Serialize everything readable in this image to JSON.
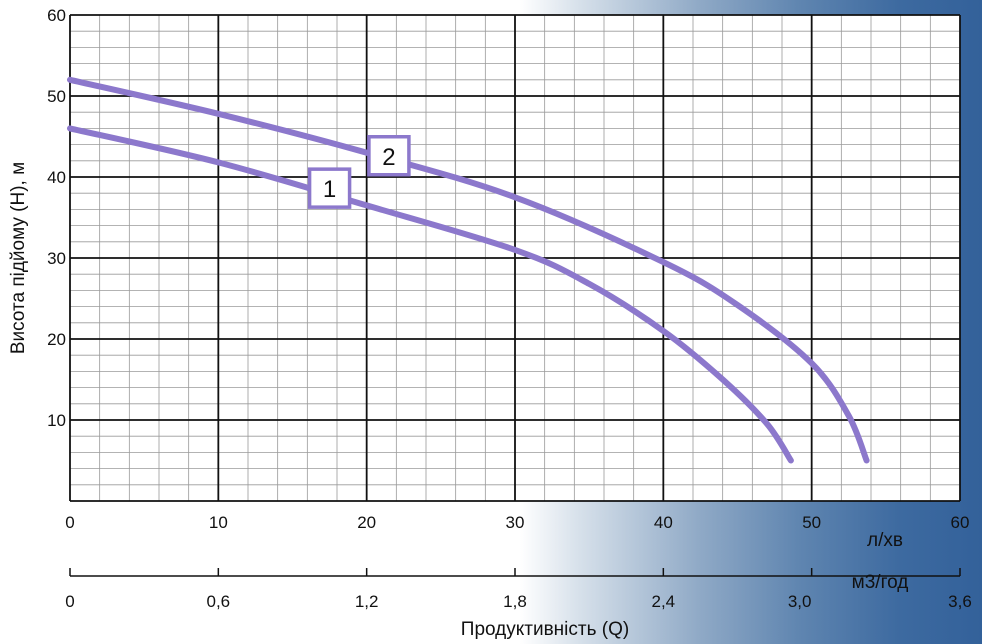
{
  "chart_data": {
    "type": "line",
    "title": "",
    "ylabel": "Висота підйому (Н), м",
    "xlabel": "Продуктивність (Q)",
    "xlim": [
      0,
      60
    ],
    "ylim": [
      0,
      60
    ],
    "x_ticks": [
      "0",
      "10",
      "20",
      "30",
      "40",
      "50",
      "60"
    ],
    "y_ticks": [
      "10",
      "20",
      "30",
      "40",
      "50",
      "60"
    ],
    "x_unit": "л/хв",
    "x2_unit": "м3/год",
    "x2_ticks": [
      "0",
      "0,6",
      "1,2",
      "1,8",
      "2,4",
      "3,0",
      "3,6"
    ],
    "grid": true,
    "line_color": "#8c78cc",
    "series": [
      {
        "name": "1",
        "x": [
          0,
          10,
          20,
          30,
          35,
          40,
          44,
          47,
          48.6
        ],
        "y": [
          46,
          41.8,
          36.5,
          31,
          26.8,
          21,
          15,
          9.5,
          5
        ]
      },
      {
        "name": "2",
        "x": [
          0,
          10,
          20,
          30,
          40,
          45,
          50,
          52.5,
          53.7
        ],
        "y": [
          52,
          47.8,
          43,
          37.5,
          29.5,
          24.2,
          17,
          10.5,
          5
        ]
      }
    ]
  }
}
